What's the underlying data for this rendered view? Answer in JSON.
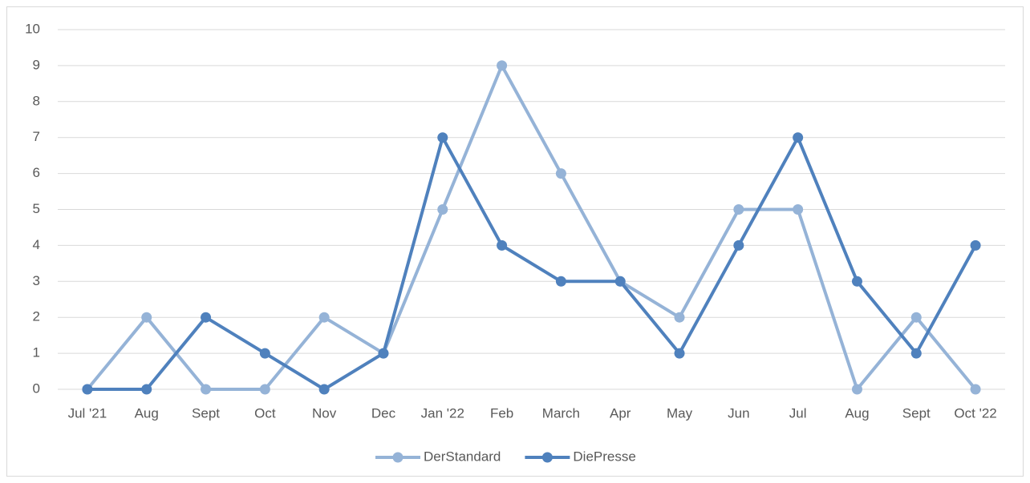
{
  "chart_data": {
    "type": "line",
    "categories": [
      "Jul '21",
      "Aug",
      "Sept",
      "Oct",
      "Nov",
      "Dec",
      "Jan '22",
      "Feb",
      "March",
      "Apr",
      "May",
      "Jun",
      "Jul",
      "Aug",
      "Sept",
      "Oct '22"
    ],
    "series": [
      {
        "name": "DerStandard",
        "color": "#95b3d7",
        "values": [
          0,
          2,
          0,
          0,
          2,
          1,
          5,
          9,
          6,
          3,
          2,
          5,
          5,
          0,
          2,
          0
        ]
      },
      {
        "name": "DiePresse",
        "color": "#4f81bd",
        "values": [
          0,
          0,
          2,
          1,
          0,
          1,
          7,
          4,
          3,
          3,
          1,
          4,
          7,
          3,
          1,
          4
        ]
      }
    ],
    "ylim": [
      0,
      10
    ],
    "yticks": [
      0,
      1,
      2,
      3,
      4,
      5,
      6,
      7,
      8,
      9,
      10
    ],
    "grid": true,
    "legend": "bottom"
  }
}
